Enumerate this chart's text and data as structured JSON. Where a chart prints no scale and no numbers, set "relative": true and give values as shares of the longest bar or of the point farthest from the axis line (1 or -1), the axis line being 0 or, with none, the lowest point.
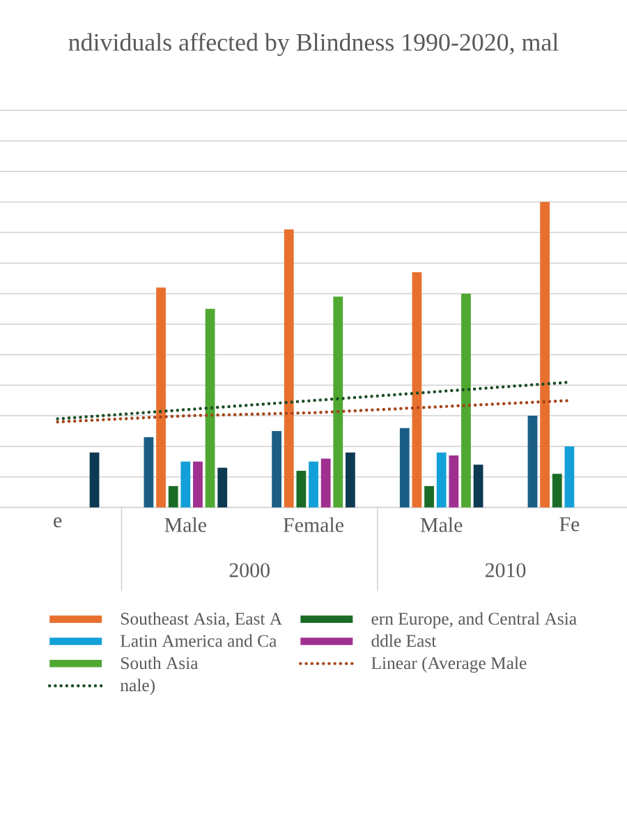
{
  "chart_data": {
    "type": "bar",
    "title": "ndividuals affected by Blindness 1990-2020, mal",
    "relative": true,
    "grid": "y",
    "legend": "bottom",
    "categories": [
      "e",
      "Male",
      "Female",
      "Male",
      "Fe"
    ],
    "annotations": [
      "2000",
      "2010"
    ],
    "series": [
      {
        "color": "#1a5e85",
        "values": [
          null,
          0.23,
          0.25,
          0.26,
          0.3
        ]
      },
      {
        "name": "Southeast Asia, East A",
        "color": "#e8702f",
        "values": [
          null,
          0.72,
          0.91,
          0.77,
          1
        ]
      },
      {
        "name": "ern Europe, and Central Asia",
        "color": "#1a6b26",
        "values": [
          null,
          0.07,
          0.12,
          0.07,
          0.11
        ]
      },
      {
        "name": "Latin America and Ca",
        "color": "#13a0d8",
        "values": [
          null,
          0.15,
          0.15,
          0.18,
          0.2
        ]
      },
      {
        "name": "ddle East",
        "color": "#a0308f",
        "values": [
          null,
          0.15,
          0.16,
          0.17,
          null
        ]
      },
      {
        "name": "South Asia",
        "color": "#4fa832",
        "values": [
          null,
          0.65,
          0.69,
          0.7,
          null
        ]
      },
      {
        "color": "#0c3a52",
        "values": [
          0.18,
          0.13,
          0.18,
          0.14,
          null
        ]
      },
      {
        "name": "Linear (Average Male",
        "type": "line",
        "line_style": "dotted",
        "color": "#a5441a",
        "values": [
          0.28,
          0.3,
          0.31,
          0.33,
          0.35
        ]
      },
      {
        "name": "nale)",
        "type": "line",
        "line_style": "dotted",
        "color": "#1b4d26",
        "values": [
          0.29,
          0.32,
          0.35,
          0.38,
          0.41
        ]
      }
    ]
  }
}
